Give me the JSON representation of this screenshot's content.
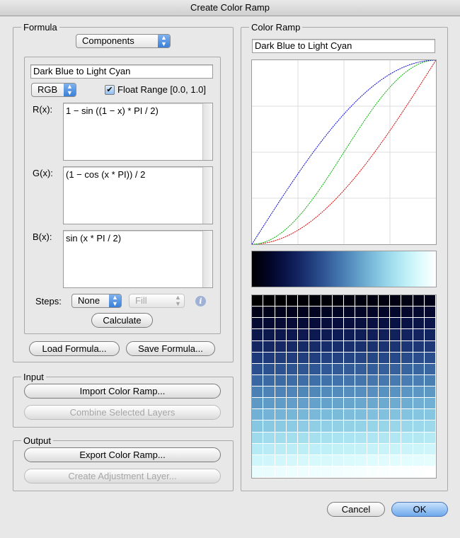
{
  "window": {
    "title": "Create Color Ramp"
  },
  "formula": {
    "group_label": "Formula",
    "mode_popup": "Components",
    "name_field": "Dark Blue to Light Cyan",
    "colorspace_popup": "RGB",
    "float_range_label": "Float Range [0.0, 1.0]",
    "float_range_checked": true,
    "r_label": "R(x):",
    "r_formula": "1 − sin ((1 − x) * PI / 2)",
    "g_label": "G(x):",
    "g_formula": "(1 − cos (x * PI)) / 2",
    "b_label": "B(x):",
    "b_formula": "sin (x * PI / 2)",
    "steps_label": "Steps:",
    "steps_popup": "None",
    "fill_popup": "Fill",
    "calculate_button": "Calculate",
    "load_button": "Load Formula...",
    "save_button": "Save Formula..."
  },
  "input": {
    "group_label": "Input",
    "import_button": "Import Color Ramp...",
    "combine_button": "Combine Selected Layers"
  },
  "output": {
    "group_label": "Output",
    "export_button": "Export Color Ramp...",
    "adjustment_button": "Create Adjustment Layer..."
  },
  "color_ramp": {
    "group_label": "Color Ramp",
    "name_field": "Dark Blue to Light Cyan",
    "curve_colors": {
      "r": "#d40000",
      "g": "#00b400",
      "b": "#0000c8"
    },
    "swatch_columns": 16,
    "swatch_rows": 16
  },
  "footer": {
    "cancel_button": "Cancel",
    "ok_button": "OK"
  }
}
